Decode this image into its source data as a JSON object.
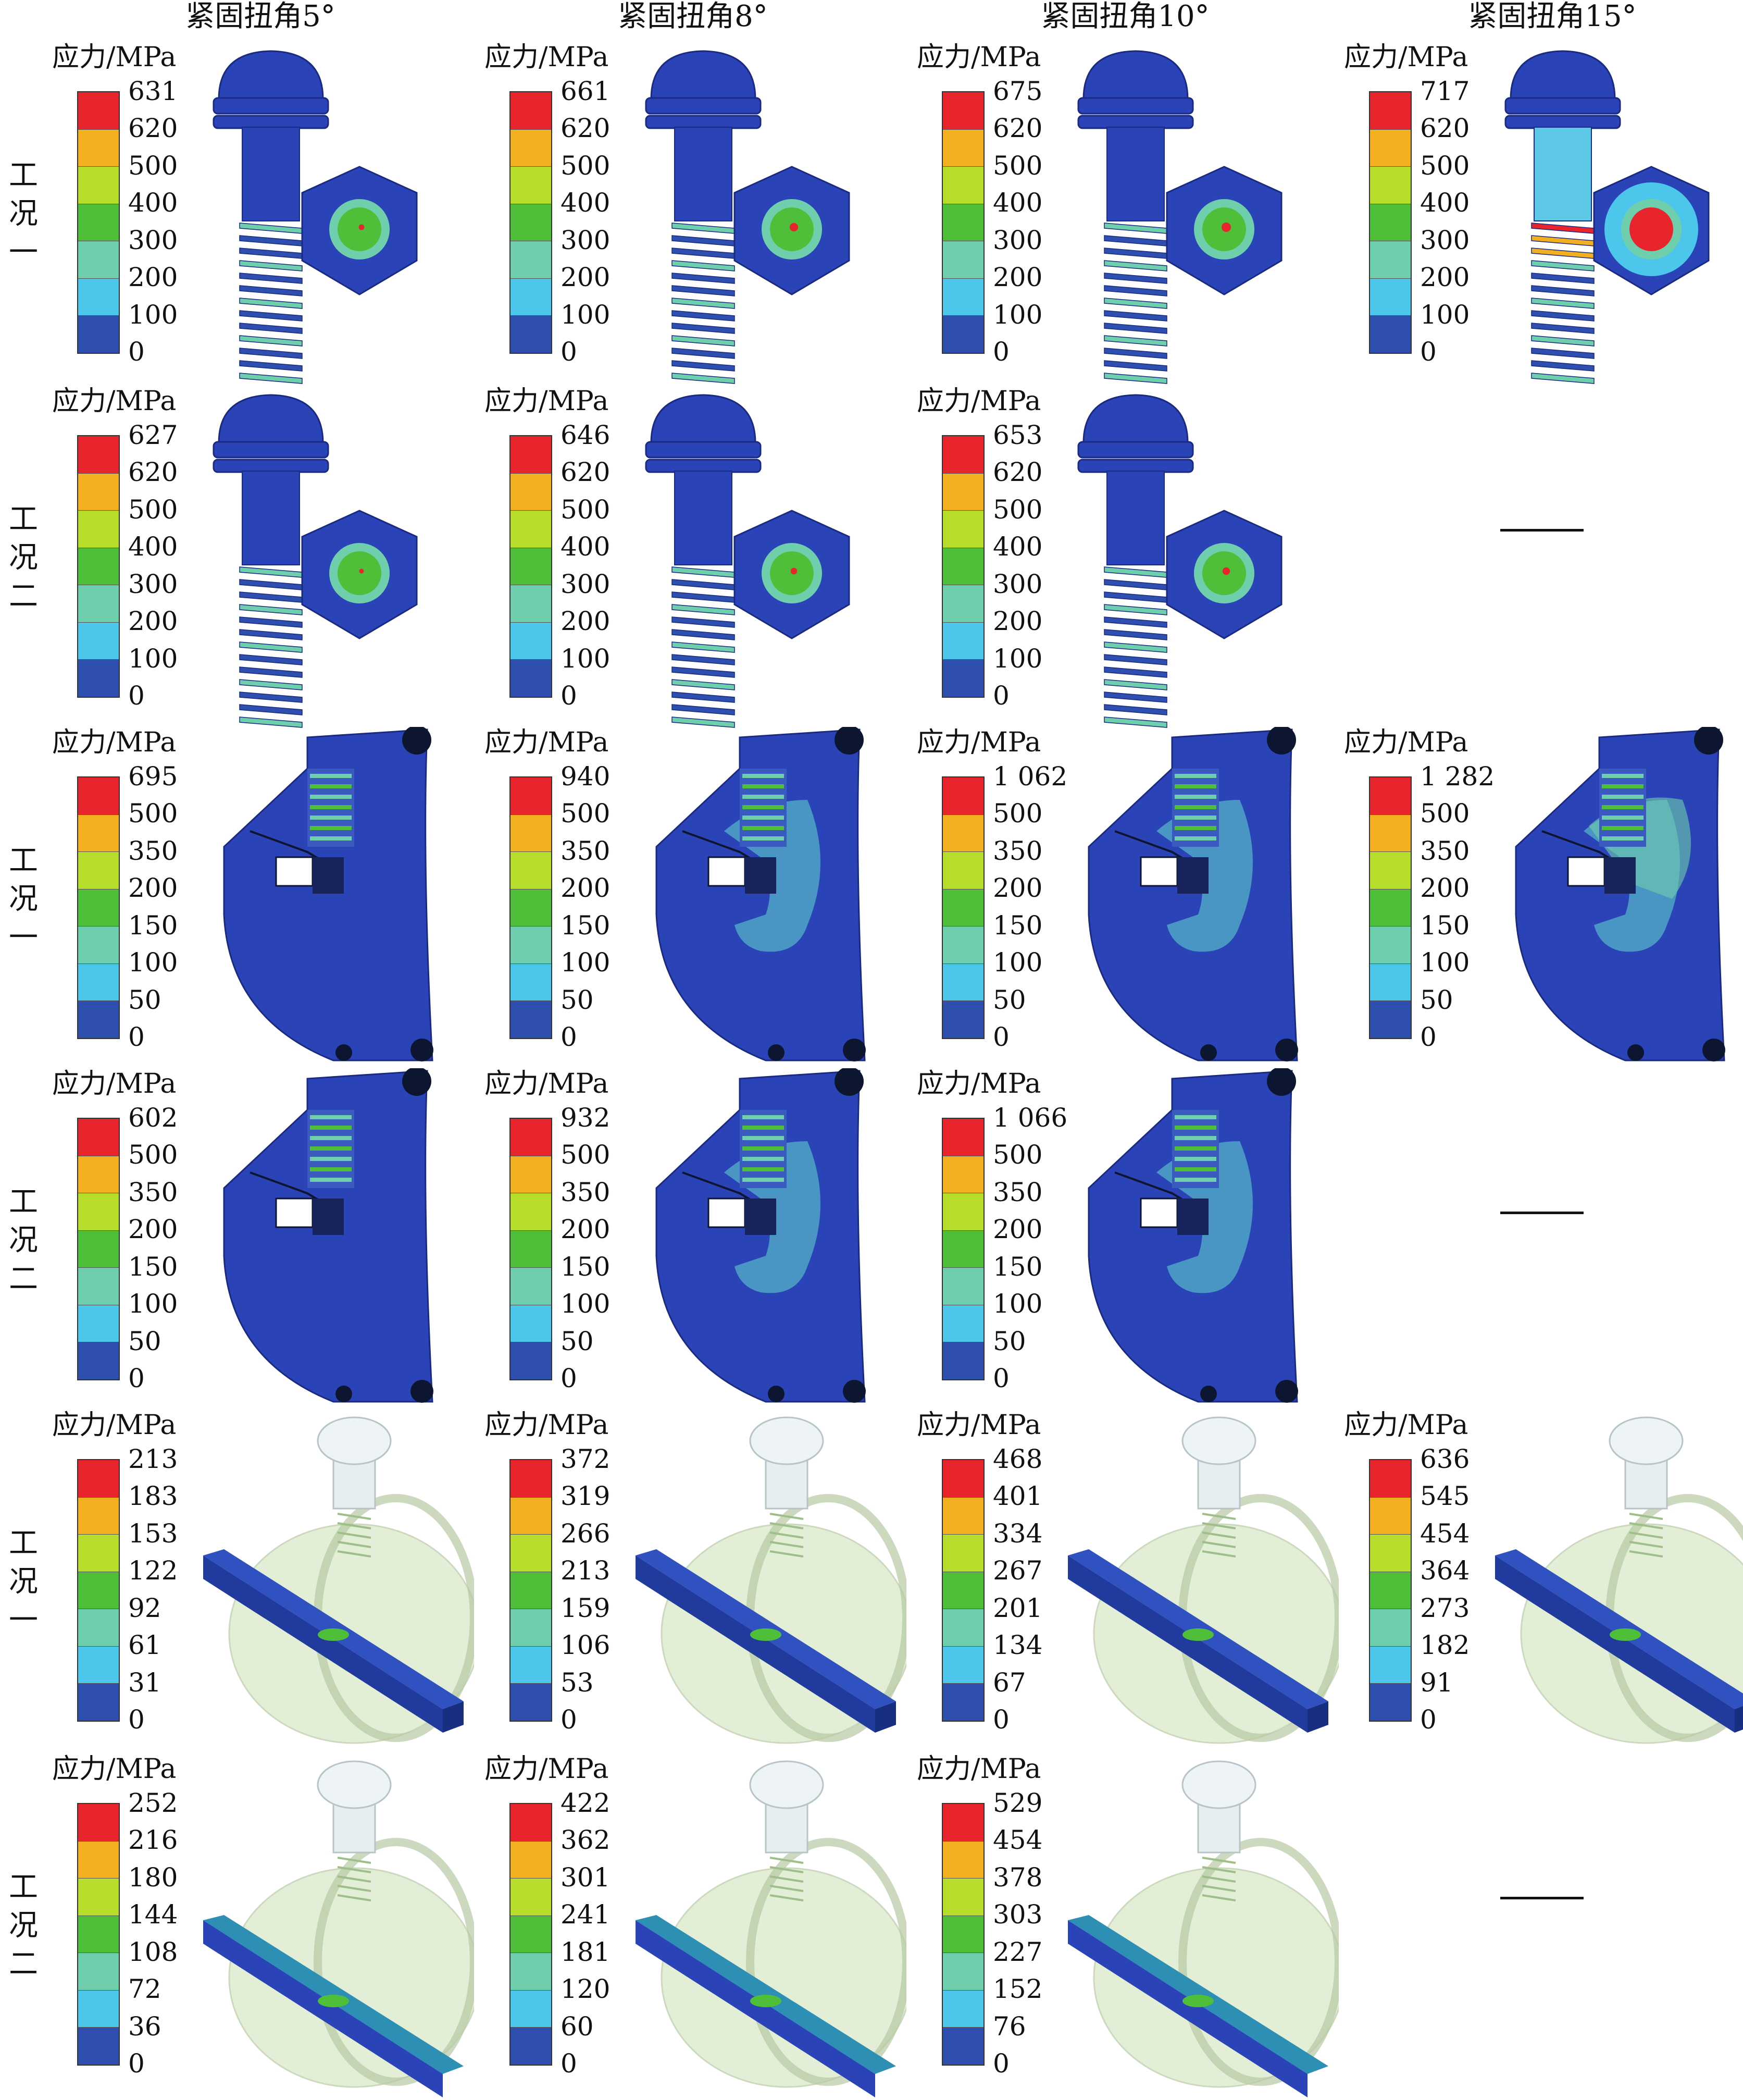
{
  "col_titles": [
    "紧固扭角5°",
    "紧固扭角8°",
    "紧固扭角10°",
    "紧固扭角15°"
  ],
  "row_labels": [
    "工况一",
    "工况二",
    "工况一",
    "工况二",
    "工况一",
    "工况二"
  ],
  "legend_colors": [
    "#e8252c",
    "#f2b020",
    "#b6dc2c",
    "#4fbf3a",
    "#6fcfac",
    "#4cc6ea",
    "#2e4fae"
  ],
  "rows": [
    {
      "kind": "bolt",
      "cells": [
        {
          "unit": "应力/MPa",
          "ticks": [
            "631",
            "620",
            "500",
            "400",
            "300",
            "200",
            "100",
            "0"
          ],
          "hot": 0.3
        },
        {
          "unit": "应力/MPa",
          "ticks": [
            "661",
            "620",
            "500",
            "400",
            "300",
            "200",
            "100",
            "0"
          ],
          "hot": 0.45
        },
        {
          "unit": "应力/MPa",
          "ticks": [
            "675",
            "620",
            "500",
            "400",
            "300",
            "200",
            "100",
            "0"
          ],
          "hot": 0.5
        },
        {
          "unit": "应力/MPa",
          "ticks": [
            "717",
            "620",
            "500",
            "400",
            "300",
            "200",
            "100",
            "0"
          ],
          "hot": 1.0
        }
      ]
    },
    {
      "kind": "bolt",
      "cells": [
        {
          "unit": "应力/MPa",
          "ticks": [
            "627",
            "620",
            "500",
            "400",
            "300",
            "200",
            "100",
            "0"
          ],
          "hot": 0.25
        },
        {
          "unit": "应力/MPa",
          "ticks": [
            "646",
            "620",
            "500",
            "400",
            "300",
            "200",
            "100",
            "0"
          ],
          "hot": 0.35
        },
        {
          "unit": "应力/MPa",
          "ticks": [
            "653",
            "620",
            "500",
            "400",
            "300",
            "200",
            "100",
            "0"
          ],
          "hot": 0.4
        },
        null
      ]
    },
    {
      "kind": "clamp",
      "cells": [
        {
          "unit": "应力/MPa",
          "ticks": [
            "695",
            "500",
            "350",
            "200",
            "150",
            "100",
            "50",
            "0"
          ],
          "hot": 0.15
        },
        {
          "unit": "应力/MPa",
          "ticks": [
            "940",
            "500",
            "350",
            "200",
            "150",
            "100",
            "50",
            "0"
          ],
          "hot": 0.6
        },
        {
          "unit": "应力/MPa",
          "ticks": [
            "1 062",
            "500",
            "350",
            "200",
            "150",
            "100",
            "50",
            "0"
          ],
          "hot": 0.75
        },
        {
          "unit": "应力/MPa",
          "ticks": [
            "1 282",
            "500",
            "350",
            "200",
            "150",
            "100",
            "50",
            "0"
          ],
          "hot": 1.0
        }
      ]
    },
    {
      "kind": "clamp",
      "cells": [
        {
          "unit": "应力/MPa",
          "ticks": [
            "602",
            "500",
            "350",
            "200",
            "150",
            "100",
            "50",
            "0"
          ],
          "hot": 0.15
        },
        {
          "unit": "应力/MPa",
          "ticks": [
            "932",
            "500",
            "350",
            "200",
            "150",
            "100",
            "50",
            "0"
          ],
          "hot": 0.6
        },
        {
          "unit": "应力/MPa",
          "ticks": [
            "1 066",
            "500",
            "350",
            "200",
            "150",
            "100",
            "50",
            "0"
          ],
          "hot": 0.75
        },
        null
      ]
    },
    {
      "kind": "bar",
      "cells": [
        {
          "unit": "应力/MPa",
          "ticks": [
            "213",
            "183",
            "153",
            "122",
            "92",
            "61",
            "31",
            "0"
          ],
          "hot": 0.3
        },
        {
          "unit": "应力/MPa",
          "ticks": [
            "372",
            "319",
            "266",
            "213",
            "159",
            "106",
            "53",
            "0"
          ],
          "hot": 0.4
        },
        {
          "unit": "应力/MPa",
          "ticks": [
            "468",
            "401",
            "334",
            "267",
            "201",
            "134",
            "67",
            "0"
          ],
          "hot": 0.5
        },
        {
          "unit": "应力/MPa",
          "ticks": [
            "636",
            "545",
            "454",
            "364",
            "273",
            "182",
            "91",
            "0"
          ],
          "hot": 0.6
        }
      ]
    },
    {
      "kind": "bar2",
      "cells": [
        {
          "unit": "应力/MPa",
          "ticks": [
            "252",
            "216",
            "180",
            "144",
            "108",
            "72",
            "36",
            "0"
          ],
          "hot": 0.3
        },
        {
          "unit": "应力/MPa",
          "ticks": [
            "422",
            "362",
            "301",
            "241",
            "181",
            "120",
            "60",
            "0"
          ],
          "hot": 0.4
        },
        {
          "unit": "应力/MPa",
          "ticks": [
            "529",
            "454",
            "378",
            "303",
            "227",
            "152",
            "76",
            "0"
          ],
          "hot": 0.5
        },
        null
      ]
    }
  ]
}
